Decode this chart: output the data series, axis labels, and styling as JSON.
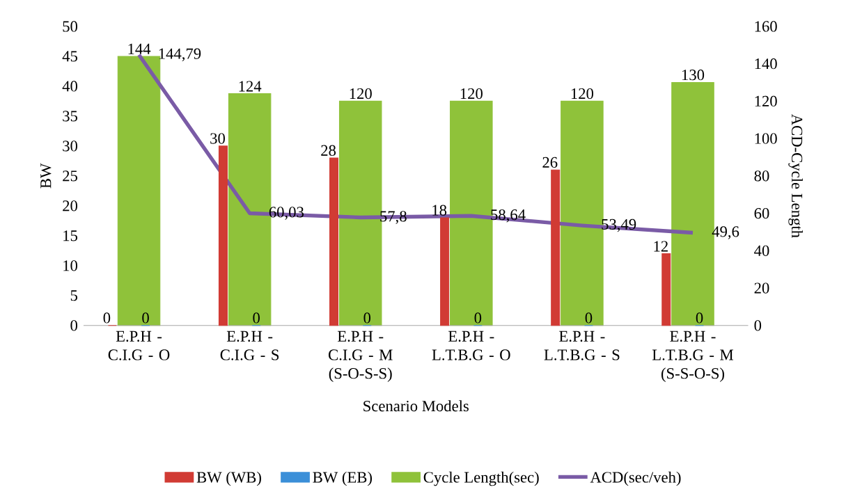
{
  "chart_data": {
    "type": "bar",
    "xlabel": "Scenario Models",
    "ylabel": "BW",
    "y2label": "ACD-Cycle Length",
    "categories": [
      "E.P.H - C.I.G - O",
      "E.P.H - C.I.G - S",
      "E.P.H - C.I.G - M (S-O-S-S)",
      "E.P.H - L.T.B.G - O",
      "E.P.H - L.T.B.G - S",
      "E.P.H - L.T.B.G - M (S-S-O-S)"
    ],
    "series": [
      {
        "name": "BW (WB)",
        "color": "#d13b34",
        "values": [
          0,
          30,
          28,
          18,
          26,
          12
        ],
        "value_labels": [
          "0",
          "30",
          "28",
          "18",
          "26",
          "12"
        ]
      },
      {
        "name": "BW (EB)",
        "color": "#3b8fd8",
        "values": [
          0,
          0,
          0,
          0,
          0,
          0
        ],
        "value_labels": [
          "0",
          "0",
          "0",
          "0",
          "0",
          "0"
        ]
      },
      {
        "name": "Cycle Length(sec)",
        "color": "#8fc23a",
        "axis": "y2",
        "values": [
          144,
          124,
          120,
          120,
          120,
          130
        ],
        "value_labels": [
          "144",
          "124",
          "120",
          "120",
          "120",
          "130"
        ]
      },
      {
        "name": "ACD(sec/veh)",
        "color": "#7a5ba6",
        "axis": "y2",
        "type": "line",
        "values": [
          144.79,
          60.03,
          57.8,
          58.64,
          53.49,
          49.6
        ],
        "value_labels": [
          "144,79",
          "60,03",
          "57,8",
          "58,64",
          "53,49",
          "49,6"
        ]
      }
    ],
    "ylim": [
      0,
      50
    ],
    "yticks": [
      0,
      5,
      10,
      15,
      20,
      25,
      30,
      35,
      40,
      45,
      50
    ],
    "y2lim": [
      0,
      160
    ],
    "y2ticks": [
      0,
      20,
      40,
      60,
      80,
      100,
      120,
      140,
      160
    ],
    "legend": "bottom",
    "grid": false
  }
}
